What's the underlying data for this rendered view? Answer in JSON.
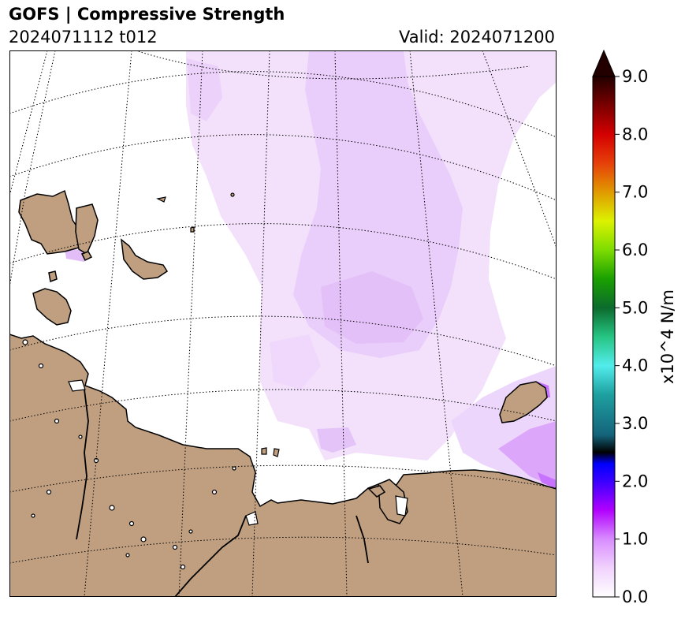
{
  "header": {
    "title": "GOFS  |  Compressive Strength",
    "run": "2024071112 t012",
    "valid": "Valid: 2024071200"
  },
  "map": {
    "land_color": "#bf9f7f",
    "ocean_color": "#ffffff",
    "graticule_style": "dotted black",
    "field_color": "#efd8fb",
    "field_color_dark": "#e4c4f8",
    "field_color_high": "#c873ff"
  },
  "colorbar": {
    "label": "x10^4 N/m",
    "min": 0.0,
    "max": 9.0,
    "extend": "max",
    "ticks": [
      "0.0",
      "1.0",
      "2.0",
      "3.0",
      "4.0",
      "5.0",
      "6.0",
      "7.0",
      "8.0",
      "9.0"
    ],
    "colors": [
      {
        "v": 0.0,
        "c": "#ffffff"
      },
      {
        "v": 0.5,
        "c": "#f1d2fd"
      },
      {
        "v": 1.0,
        "c": "#d88dff"
      },
      {
        "v": 1.5,
        "c": "#b100ff"
      },
      {
        "v": 2.0,
        "c": "#3a00ff"
      },
      {
        "v": 2.3,
        "c": "#0000ff"
      },
      {
        "v": 2.5,
        "c": "#000000"
      },
      {
        "v": 2.8,
        "c": "#14637a"
      },
      {
        "v": 3.5,
        "c": "#1ea0a0"
      },
      {
        "v": 4.0,
        "c": "#52ecec"
      },
      {
        "v": 4.5,
        "c": "#26c483"
      },
      {
        "v": 5.0,
        "c": "#0b6b2d"
      },
      {
        "v": 5.5,
        "c": "#1aa000"
      },
      {
        "v": 6.0,
        "c": "#7ddc00"
      },
      {
        "v": 6.5,
        "c": "#dcf200"
      },
      {
        "v": 7.0,
        "c": "#e09a00"
      },
      {
        "v": 7.5,
        "c": "#e6400a"
      },
      {
        "v": 8.0,
        "c": "#d40000"
      },
      {
        "v": 8.5,
        "c": "#7a0000"
      },
      {
        "v": 9.0,
        "c": "#220000"
      }
    ]
  }
}
